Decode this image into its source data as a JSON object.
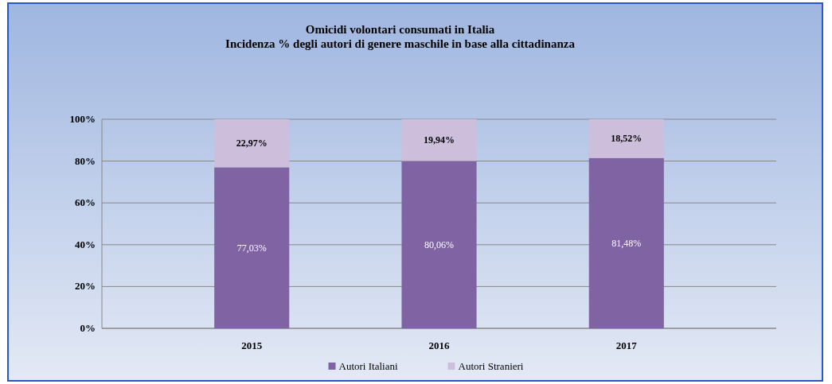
{
  "chart_data": {
    "type": "bar",
    "title": "Omicidi volontari consumati in Italia",
    "subtitle": "Incidenza % degli autori di genere maschile in base alla cittadinanza",
    "categories": [
      "2015",
      "2016",
      "2017"
    ],
    "stacked": true,
    "series": [
      {
        "name": "Autori Italiani",
        "color": "#7f63a3",
        "values": [
          77.03,
          80.06,
          81.48
        ],
        "value_labels": [
          "77,03%",
          "80,06%",
          "81,48%"
        ]
      },
      {
        "name": "Autori Stranieri",
        "color": "#cdbfdc",
        "values": [
          22.97,
          19.94,
          18.52
        ],
        "value_labels": [
          "22,97%",
          "19,94%",
          "18,52%"
        ]
      }
    ],
    "ylim": [
      0,
      100
    ],
    "yticks": [
      {
        "value": 0,
        "label": "0%"
      },
      {
        "value": 20,
        "label": "20%"
      },
      {
        "value": 40,
        "label": "40%"
      },
      {
        "value": 60,
        "label": "60%"
      },
      {
        "value": 80,
        "label": "80%"
      },
      {
        "value": 100,
        "label": "100%"
      }
    ],
    "grid": "y",
    "legend": "bottom"
  }
}
